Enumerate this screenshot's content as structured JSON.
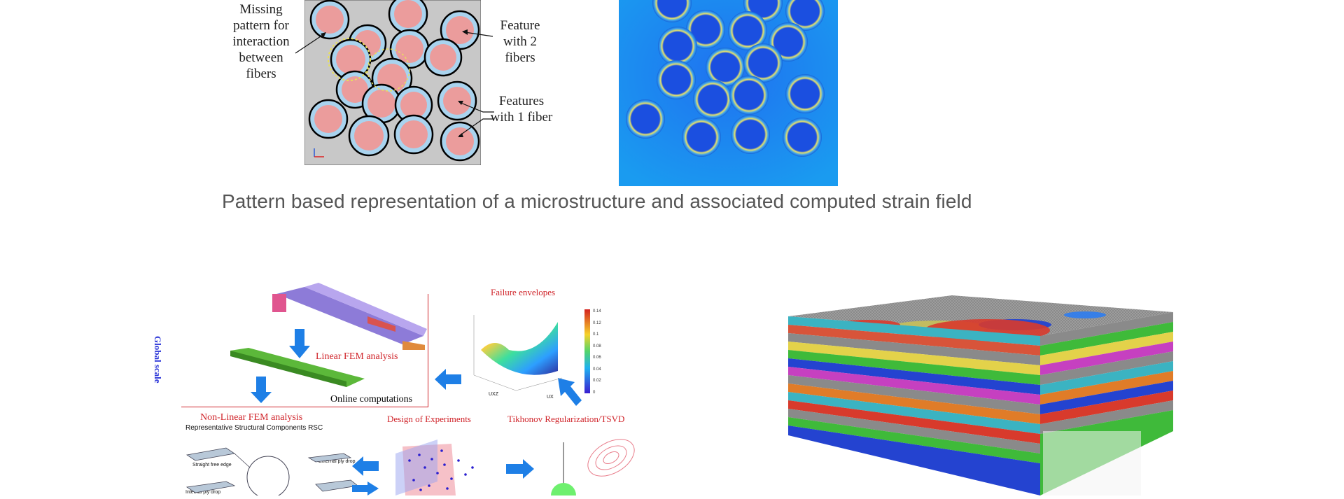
{
  "figure1": {
    "annotations": {
      "missing_pattern": "Missing pattern for interaction between fibers",
      "feature_2": "Feature with 2 fibers",
      "features_1": "Features with 1 fiber"
    }
  },
  "caption": "Pattern based representation of a microstructure and associated computed strain field",
  "figure2": {
    "global_scale": "Global scale",
    "linear_fem": "Linear FEM analysis",
    "online_computations": "Online computations",
    "failure_envelopes": "Failure envelopes",
    "nonlinear_fem": "Non-Linear FEM analysis",
    "rsc": "Representative Structural Components RSC",
    "design_of_experiments": "Design of Experiments",
    "tikhonov": "Tikhonov Regularization/TSVD",
    "colorbar_ticks": [
      "0.14",
      "0.12",
      "0.1",
      "0.08",
      "0.06",
      "0.04",
      "0.02",
      "0"
    ],
    "surface_axis_labels": {
      "uxz": "UXZ",
      "ux": "UX"
    },
    "rsc_labels": {
      "straight_free_edge": "Straight free edge",
      "external_ply_drop": "External ply drop",
      "internal_ply_drop": "Internal ply drop"
    }
  },
  "colors": {
    "caption_text": "#555555",
    "annotation_red": "#d0242a",
    "arrow_blue": "#1e7fe6",
    "global_scale_blue": "#2b35d8"
  }
}
